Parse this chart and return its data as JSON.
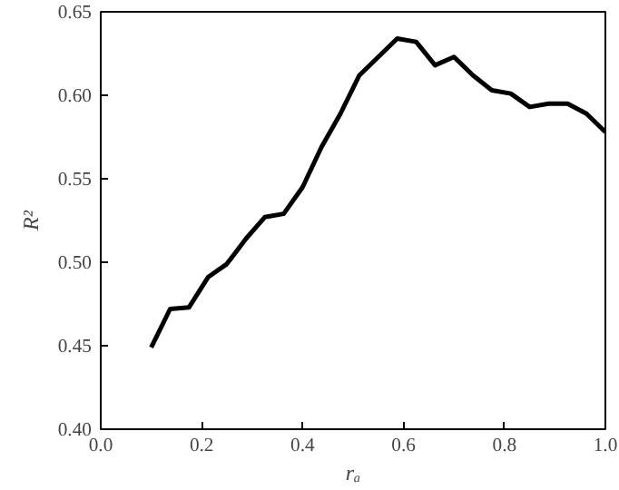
{
  "chart_data": {
    "type": "line",
    "xlabel": "rₐ",
    "ylabel": "R²",
    "x": [
      0.1,
      0.1375,
      0.175,
      0.2125,
      0.25,
      0.2875,
      0.325,
      0.3625,
      0.4,
      0.4375,
      0.475,
      0.5125,
      0.55,
      0.5875,
      0.625,
      0.6625,
      0.7,
      0.7375,
      0.775,
      0.8125,
      0.85,
      0.8875,
      0.925,
      0.9625,
      1.0
    ],
    "series": [
      {
        "color": "#000000",
        "values": [
          0.449,
          0.472,
          0.473,
          0.491,
          0.499,
          0.514,
          0.527,
          0.529,
          0.545,
          0.569,
          0.589,
          0.612,
          0.623,
          0.634,
          0.632,
          0.618,
          0.623,
          0.612,
          0.603,
          0.601,
          0.593,
          0.595,
          0.595,
          0.589,
          0.578
        ]
      }
    ],
    "xlim": [
      0.0,
      1.0
    ],
    "ylim": [
      0.4,
      0.65
    ],
    "xticks": [
      {
        "value": 0.0,
        "label": "0.0"
      },
      0.2,
      0.4,
      0.6,
      0.8,
      {
        "value": 1.0,
        "label": "1.0"
      }
    ],
    "yticks": [
      {
        "value": 0.4,
        "label": "0.40"
      },
      0.45,
      {
        "value": 0.5,
        "label": "0.50"
      },
      0.55,
      {
        "value": 0.6,
        "label": "0.60"
      },
      0.65
    ],
    "grid": false,
    "line_style": "solid"
  }
}
